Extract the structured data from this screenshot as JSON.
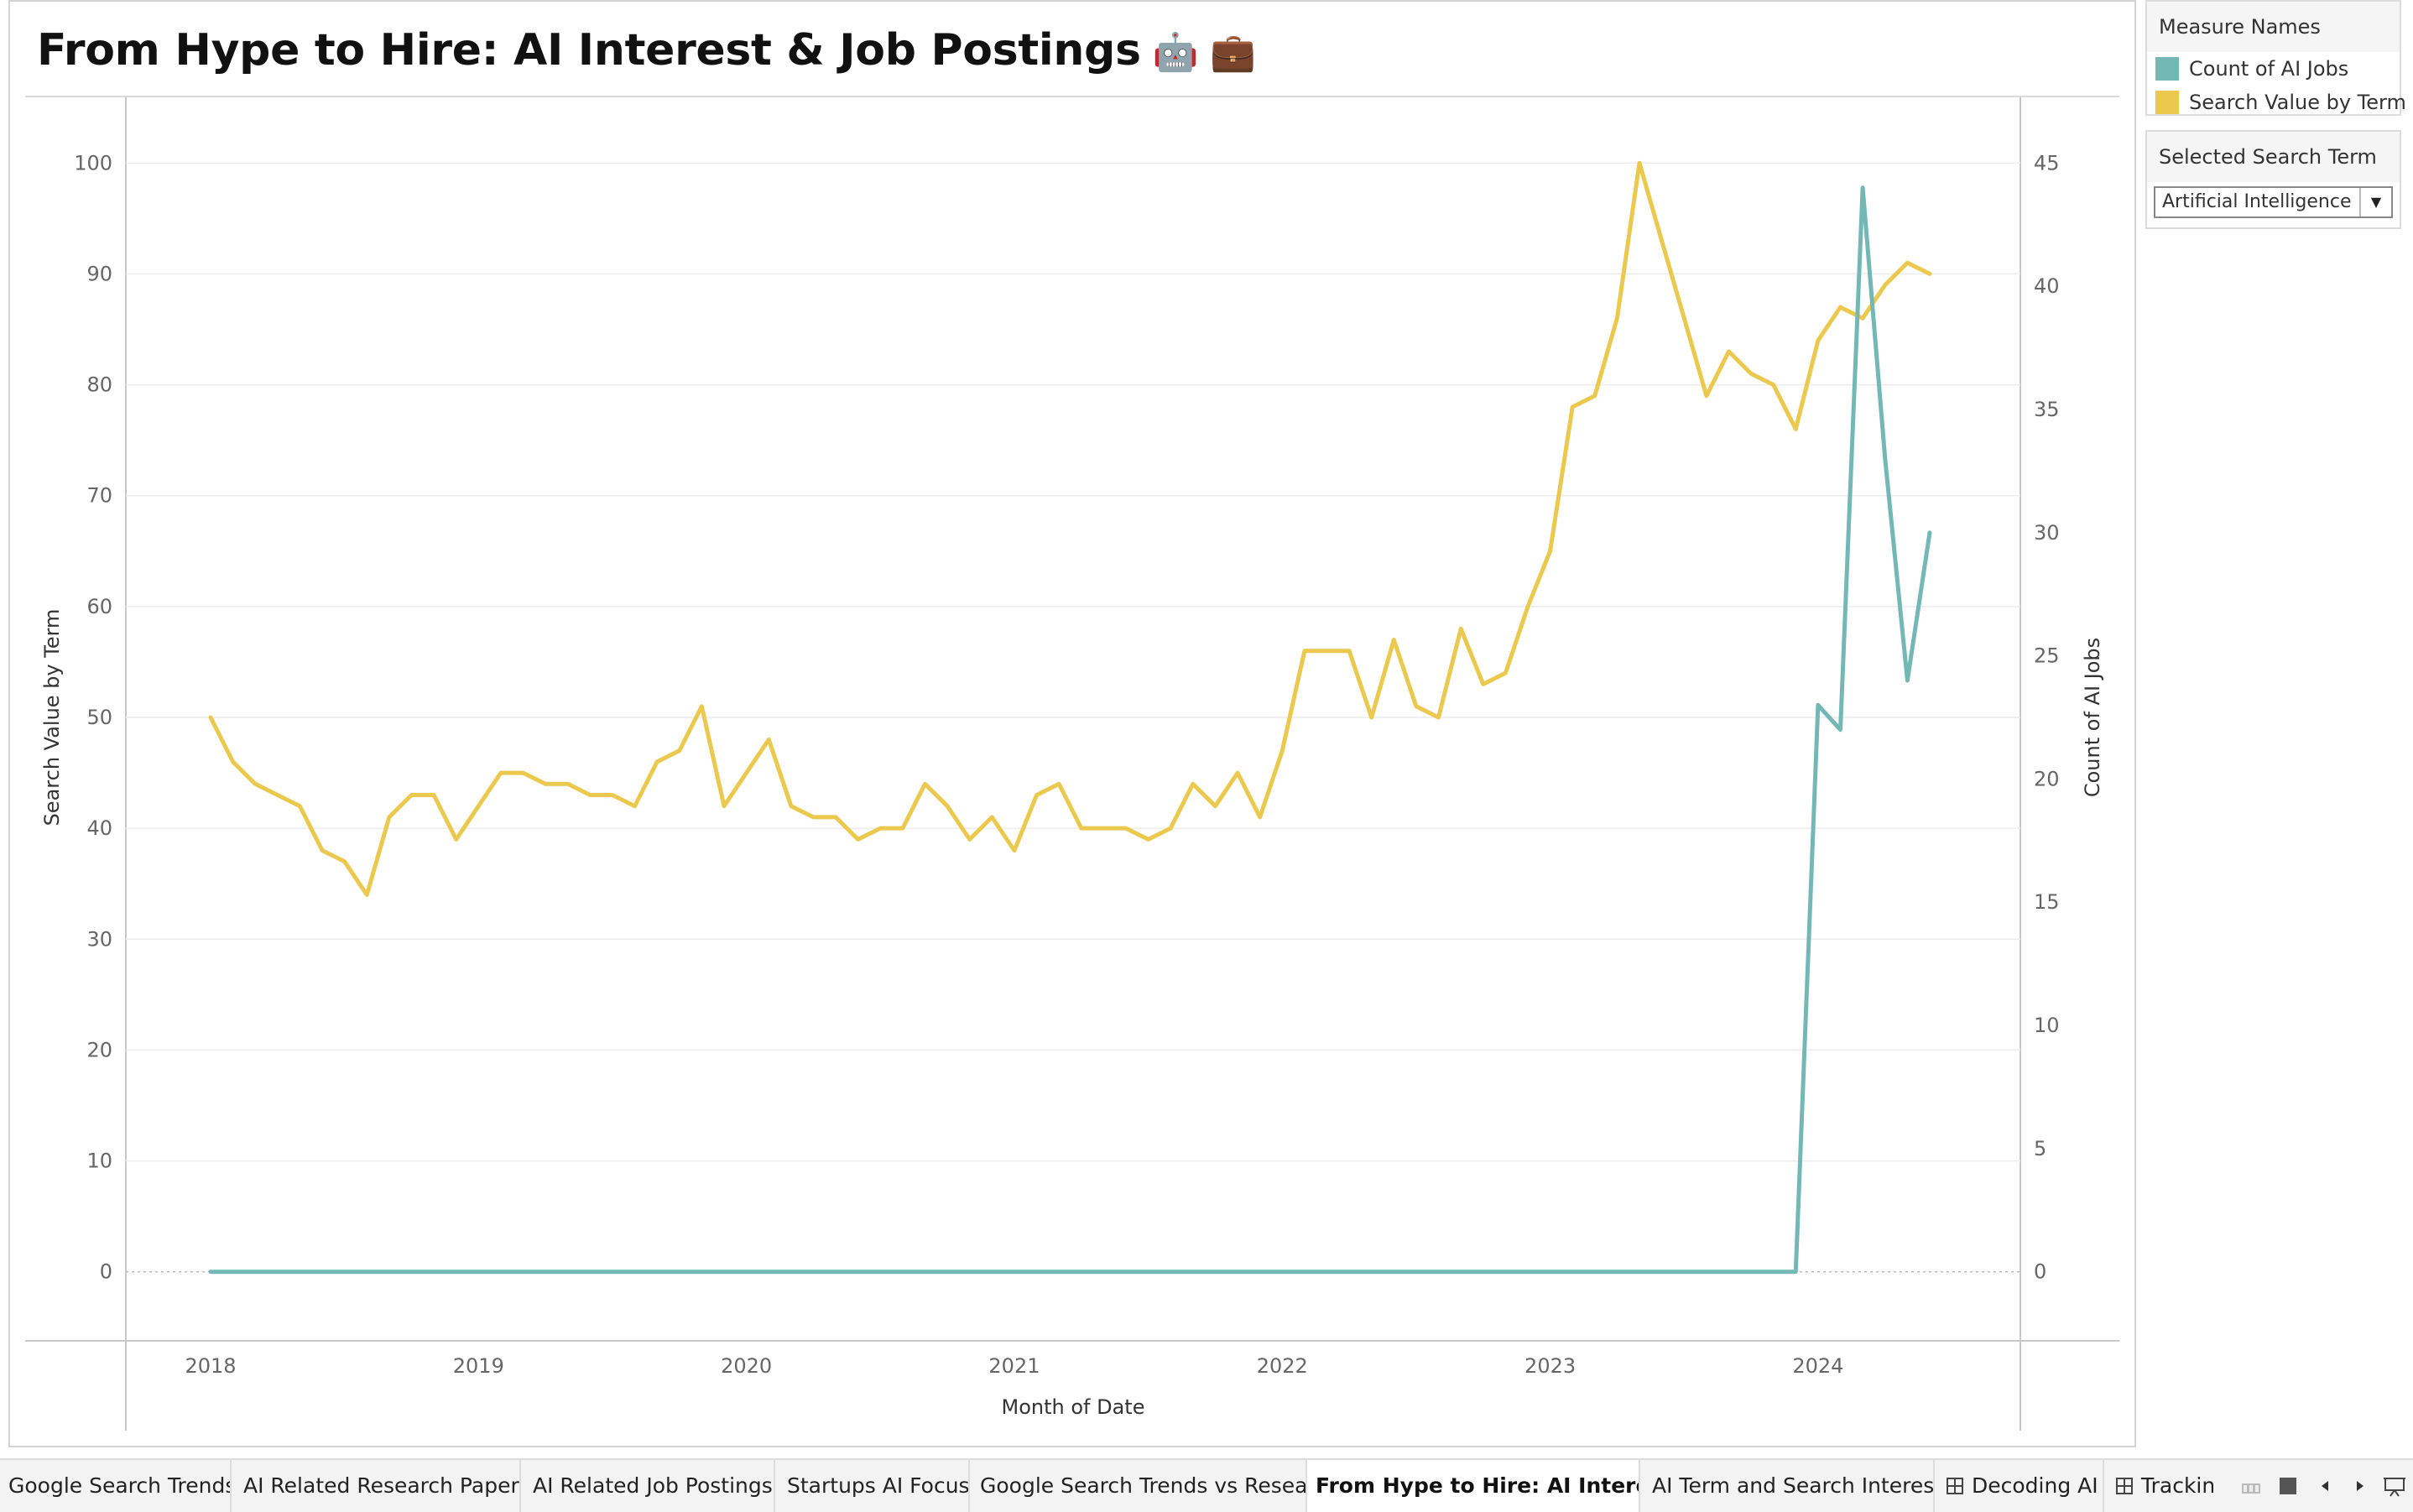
{
  "title": "From Hype to Hire: AI Interest & Job Postings",
  "title_emojis": [
    "🤖",
    "💼"
  ],
  "legend": {
    "title": "Measure Names",
    "items": [
      {
        "label": "Count of AI Jobs",
        "color": "#74b8b5"
      },
      {
        "label": "Search Value by Term",
        "color": "#ebc94e"
      }
    ]
  },
  "filter": {
    "title": "Selected Search Term",
    "value": "Artificial Intelligence",
    "icon": "dropdown-arrow-icon"
  },
  "chart_data": {
    "type": "line",
    "xlabel": "Month of Date",
    "ylabel_left": "Search Value by Term",
    "ylabel_right": "Count of AI Jobs",
    "x_ticks": [
      "2018",
      "2019",
      "2020",
      "2021",
      "2022",
      "2023",
      "2024"
    ],
    "y_left_ticks": [
      "0",
      "10",
      "20",
      "30",
      "40",
      "50",
      "60",
      "70",
      "80",
      "90",
      "100"
    ],
    "y_right_ticks": [
      "0",
      "5",
      "10",
      "15",
      "20",
      "25",
      "30",
      "35",
      "40",
      "45"
    ],
    "ylim_left": [
      -6,
      106
    ],
    "ylim_right": [
      -2.7,
      47.7
    ],
    "grid": true,
    "series": [
      {
        "name": "Search Value by Term",
        "axis": "left",
        "color": "#ebc94e",
        "x": [
          "2018-01",
          "2018-02",
          "2018-03",
          "2018-04",
          "2018-05",
          "2018-06",
          "2018-07",
          "2018-08",
          "2018-09",
          "2018-10",
          "2018-11",
          "2018-12",
          "2019-01",
          "2019-02",
          "2019-03",
          "2019-04",
          "2019-05",
          "2019-06",
          "2019-07",
          "2019-08",
          "2019-09",
          "2019-10",
          "2019-11",
          "2019-12",
          "2020-01",
          "2020-02",
          "2020-03",
          "2020-04",
          "2020-05",
          "2020-06",
          "2020-07",
          "2020-08",
          "2020-09",
          "2020-10",
          "2020-11",
          "2020-12",
          "2021-01",
          "2021-02",
          "2021-03",
          "2021-04",
          "2021-05",
          "2021-06",
          "2021-07",
          "2021-08",
          "2021-09",
          "2021-10",
          "2021-11",
          "2021-12",
          "2022-01",
          "2022-02",
          "2022-03",
          "2022-04",
          "2022-05",
          "2022-06",
          "2022-07",
          "2022-08",
          "2022-09",
          "2022-10",
          "2022-11",
          "2022-12",
          "2023-01",
          "2023-02",
          "2023-03",
          "2023-04",
          "2023-05",
          "2023-06",
          "2023-07",
          "2023-08",
          "2023-09",
          "2023-10",
          "2023-11",
          "2023-12",
          "2024-01",
          "2024-02",
          "2024-03",
          "2024-04",
          "2024-05",
          "2024-06"
        ],
        "values": [
          50,
          46,
          44,
          43,
          42,
          38,
          37,
          34,
          41,
          43,
          43,
          39,
          42,
          45,
          45,
          44,
          44,
          43,
          43,
          42,
          46,
          47,
          51,
          42,
          45,
          48,
          42,
          41,
          41,
          39,
          40,
          40,
          44,
          42,
          39,
          41,
          38,
          43,
          44,
          40,
          40,
          40,
          39,
          40,
          44,
          42,
          45,
          41,
          47,
          56,
          56,
          56,
          50,
          57,
          51,
          50,
          58,
          53,
          54,
          60,
          65,
          78,
          79,
          86,
          100,
          93,
          86,
          79,
          83,
          81,
          80,
          76,
          84,
          87,
          86,
          89,
          91,
          90
        ]
      },
      {
        "name": "Count of AI Jobs",
        "axis": "right",
        "color": "#74b8b5",
        "x": [
          "2018-01",
          "2023-12",
          "2024-01",
          "2024-02",
          "2024-03",
          "2024-04",
          "2024-05",
          "2024-06"
        ],
        "values": [
          0,
          0,
          23,
          22,
          44,
          33,
          24,
          30
        ]
      }
    ]
  },
  "tabs": [
    {
      "label": "Google Search Trends",
      "active": false,
      "icon": ""
    },
    {
      "label": "AI Related Research Papers",
      "active": false,
      "icon": ""
    },
    {
      "label": "AI Related Job Postings",
      "active": false,
      "icon": ""
    },
    {
      "label": "Startups AI Focus",
      "active": false,
      "icon": ""
    },
    {
      "label": "Google Search Trends vs Resear...",
      "active": false,
      "icon": ""
    },
    {
      "label": "From Hype to Hire: AI Interest ...",
      "active": true,
      "icon": ""
    },
    {
      "label": "AI Term and Search Interest",
      "active": false,
      "icon": ""
    },
    {
      "label": "Decoding AI",
      "active": false,
      "icon": "dashboard-grid-icon"
    },
    {
      "label": "Trackin",
      "active": false,
      "icon": "dashboard-grid-icon"
    }
  ],
  "nav_controls": [
    "filmstrip-icon",
    "stop-square-icon",
    "prev-arrow-icon",
    "next-arrow-icon",
    "presentation-icon"
  ]
}
